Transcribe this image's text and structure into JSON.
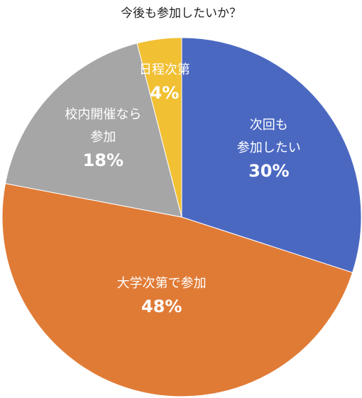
{
  "chart_data": {
    "type": "pie",
    "title": "今後も参加したいか？",
    "categories": [
      "次回も\n参加したい",
      "大学次第で参加",
      "校内開催なら\n参加",
      "日程次第"
    ],
    "values": [
      30,
      48,
      18,
      4
    ],
    "value_labels": [
      "30%",
      "48%",
      "18%",
      "4%"
    ],
    "colors": [
      "#4b68c1",
      "#e07b36",
      "#a6a6a6",
      "#f1c033"
    ]
  }
}
